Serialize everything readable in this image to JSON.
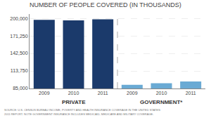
{
  "chart_data": {
    "type": "bar",
    "title": "NUMBER OF PEOPLE COVERED (IN THOUSANDS)",
    "categories": [
      "2009",
      "2010",
      "2011",
      "2009",
      "2010",
      "2011"
    ],
    "values": [
      197500,
      196500,
      198500,
      91000,
      93500,
      96500
    ],
    "colors": [
      "#1b3a6b",
      "#1b3a6b",
      "#1b3a6b",
      "#6aaad4",
      "#6aaad4",
      "#6aaad4"
    ],
    "group_labels": [
      "PRIVATE",
      "GOVERNMENT*"
    ],
    "source": [
      "SOURCE: U.S. CENSUS BUREAU INCOME, POVERTY AND HEALTH INSURANCE COVERAGE IN THE UNITED STATES:",
      "2011 REPORT. NOTE GOVERNMENT INSURANCE INCLUDES MEDICAID, MEDICARE AND MILITARY COVERAGE."
    ],
    "ylim": [
      85000,
      207000
    ],
    "yticks": [
      {
        "value": 85000,
        "label": "85,000"
      },
      {
        "value": 113750,
        "label": "113,750"
      },
      {
        "value": 142500,
        "label": "142,500"
      },
      {
        "value": 171250,
        "label": "171,250"
      },
      {
        "value": 200000,
        "label": "200,000"
      }
    ],
    "grid": true
  }
}
